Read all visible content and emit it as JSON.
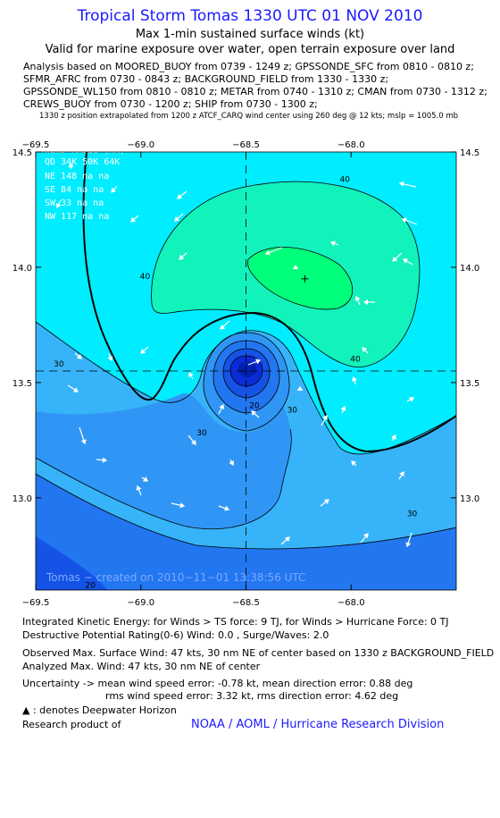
{
  "header": {
    "title": "Tropical Storm Tomas 1330 UTC 01 NOV 2010",
    "subtitle": "Max 1-min sustained surface winds (kt)",
    "valid": "Valid for marine exposure over water, open terrain exposure over land",
    "analysis_lines": [
      "Analysis based on MOORED_BUOY from 0739 - 1249 z; GPSSONDE_SFC from 0810 - 0810 z;",
      "SFMR_AFRC from 0730 - 0843 z; BACKGROUND_FIELD from 1330 - 1330 z;",
      "GPSSONDE_WL150 from 0810 - 0810 z; METAR from 0740 - 1310 z; CMAN from 0730 - 1312 z;",
      "CREWS_BUOY from 0730 - 1200 z; SHIP from 0730 - 1300 z;"
    ],
    "position_note": "1330 z position extrapolated from 1200 z ATCF_CARQ wind center using 260 deg @ 12 kts; mslp = 1005.0 mb"
  },
  "colors": {
    "accent_blue": "#1a1aff",
    "bands": [
      "#0b2bd6",
      "#1553e6",
      "#2277f0",
      "#2f96f6",
      "#37b4f9",
      "#00ecff",
      "#12f2bb",
      "#00ff7a"
    ]
  },
  "chart_data": {
    "type": "heatmap",
    "subtype": "wind-speed contour map",
    "units": "kt",
    "xlim": [
      -69.5,
      -67.5
    ],
    "ylim": [
      12.6,
      14.5
    ],
    "x_ticks": [
      -69.5,
      -69.0,
      -68.5,
      -68.0
    ],
    "y_ticks": [
      13.0,
      13.5,
      14.0,
      14.5
    ],
    "x_tick_labels": [
      "−69.5",
      "−69.0",
      "−68.5",
      "−68.0"
    ],
    "y_tick_labels": [
      "13.0",
      "13.5",
      "14.0",
      "14.5"
    ],
    "storm_center": {
      "lon": -68.5,
      "lat": 13.55
    },
    "max_wind_marker": {
      "lon": -68.22,
      "lat": 13.95
    },
    "contour_levels": [
      20,
      30,
      40
    ],
    "contour_labels": [
      {
        "text": "40",
        "lon": -68.03,
        "lat": 14.37
      },
      {
        "text": "40",
        "lon": -68.98,
        "lat": 13.95
      },
      {
        "text": "40",
        "lon": -67.98,
        "lat": 13.59
      },
      {
        "text": "30",
        "lon": -69.39,
        "lat": 13.57
      },
      {
        "text": "30",
        "lon": -68.71,
        "lat": 13.27
      },
      {
        "text": "30",
        "lon": -68.28,
        "lat": 13.37
      },
      {
        "text": "30",
        "lon": -67.71,
        "lat": 12.92
      },
      {
        "text": "20",
        "lon": -68.46,
        "lat": 13.39
      },
      {
        "text": "20",
        "lon": -69.24,
        "lat": 12.61
      }
    ],
    "wind_radii": {
      "title": "WIND RADII (NM)",
      "columns": [
        "QD",
        "34K",
        "50K",
        "64K"
      ],
      "rows": [
        [
          "NE",
          "148",
          "na",
          "na"
        ],
        [
          "SE",
          "84",
          "na",
          "na"
        ],
        [
          "SW",
          "33",
          "na",
          "na"
        ],
        [
          "NW",
          "117",
          "na",
          "na"
        ]
      ]
    },
    "creation_stamp": "Tomas − created on 2010−11−01 13:38:56 UTC"
  },
  "footer": {
    "ike": "Integrated Kinetic Energy:  for Winds > TS force: 9 TJ,  for Winds > Hurricane Force: 0 TJ",
    "destructive": "Destructive Potential Rating(0-6)   Wind: 0.0 , Surge/Waves: 2.0",
    "observed": "Observed Max. Surface Wind: 47 kts, 30 nm NE of center based on 1330 z BACKGROUND_FIELD",
    "analyzed": "Analyzed Max. Wind: 47 kts, 30 nm NE of center",
    "uncertainty_1": "Uncertainty -> mean wind speed error:  -0.78 kt,   mean direction error: 0.88 deg",
    "uncertainty_2": "rms wind speed error: 3.32 kt,   rms direction error: 4.62 deg",
    "deepwater_icon": "platform-icon",
    "deepwater": " : denotes Deepwater Horizon",
    "research": "Research product of",
    "org": "NOAA / AOML / Hurricane Research Division"
  }
}
